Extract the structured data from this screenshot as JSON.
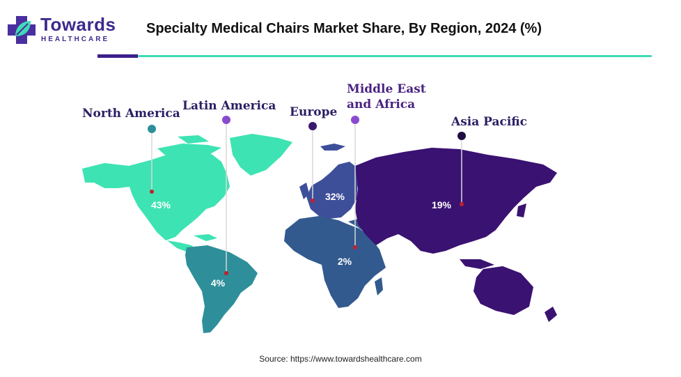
{
  "logo": {
    "name": "Towards",
    "subtitle": "HEALTHCARE"
  },
  "header": {
    "title": "Specialty Medical Chairs Market Share, By Region, 2024 (%)"
  },
  "colors": {
    "north_america": "#3ee3b3",
    "latin_america": "#2e8f9a",
    "europe": "#3e4f9a",
    "middle_east_africa": "#335a8f",
    "asia_pacific": "#3a1272",
    "header_bar_dark": "#3d1f8c",
    "header_bar_light": "#3fdcb4"
  },
  "chart_data": {
    "type": "map",
    "regions": [
      {
        "name": "North America",
        "value": 43,
        "label": "43%"
      },
      {
        "name": "Latin America",
        "value": 4,
        "label": "4%"
      },
      {
        "name": "Europe",
        "value": 32,
        "label": "32%"
      },
      {
        "name": "Middle East and Africa",
        "value": 2,
        "label": "2%"
      },
      {
        "name": "Asia Pacific",
        "value": 19,
        "label": "19%"
      }
    ]
  },
  "source": "Source: https://www.towardshealthcare.com"
}
